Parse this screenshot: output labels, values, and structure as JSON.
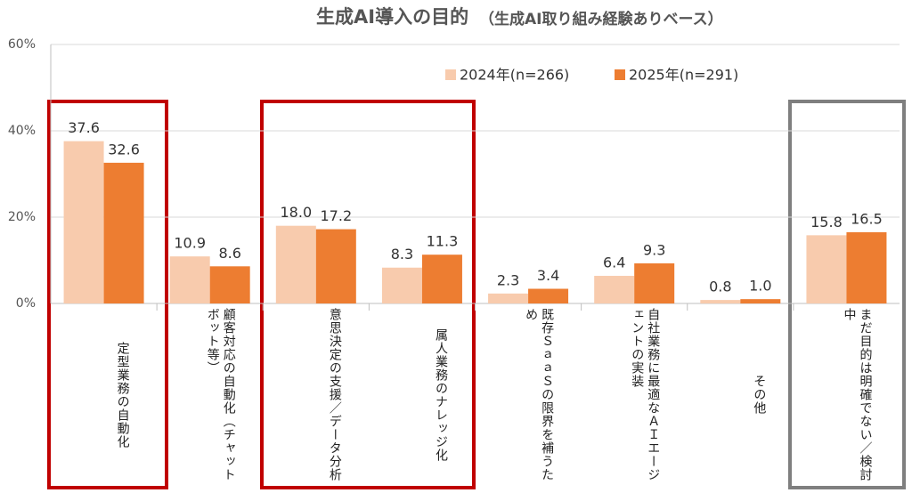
{
  "chart_data": {
    "type": "bar",
    "title": "生成AI導入の目的",
    "subtitle": "（生成AI取り組み経験ありベース）",
    "categories": [
      "定型業務の自動化",
      "顧客対応の自動化（チャットボット等）",
      "意思決定の支援／データ分析",
      "属人業務のナレッジ化",
      "既存ＳａａＳの限界を補うため",
      "自社業務に最適なＡＩエージェントの実装",
      "その他",
      "まだ目的は明確でない／検討中"
    ],
    "series": [
      {
        "name": "2024年(n=266)",
        "color": "#f8cbad",
        "values": [
          37.6,
          10.9,
          18.0,
          8.3,
          2.3,
          6.4,
          0.8,
          15.8
        ],
        "value_labels": [
          "37.6",
          "10.9",
          "18.0",
          "8.3",
          "2.3",
          "6.4",
          "0.8",
          "15.8"
        ]
      },
      {
        "name": "2025年(n=291)",
        "color": "#ed7d31",
        "values": [
          32.6,
          8.6,
          17.2,
          11.3,
          3.4,
          9.3,
          1.0,
          16.5
        ],
        "value_labels": [
          "32.6",
          "8.6",
          "17.2",
          "11.3",
          "3.4",
          "9.3",
          "1.0",
          "16.5"
        ]
      }
    ],
    "ylim": [
      0,
      60
    ],
    "yticks": [
      {
        "value": 0,
        "label": "0%"
      },
      {
        "value": 20,
        "label": "20%"
      },
      {
        "value": 40,
        "label": "40%"
      },
      {
        "value": 60,
        "label": "60%"
      }
    ],
    "grid": true,
    "legend": "top"
  }
}
